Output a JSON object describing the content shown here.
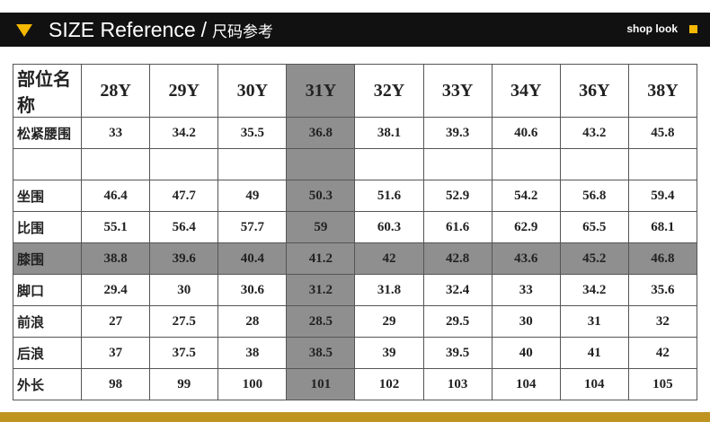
{
  "header": {
    "title": "SIZE Reference",
    "separator": "/",
    "subtitle": "尺码参考",
    "shop_link": "shop look"
  },
  "table": {
    "columns": [
      "部位名称",
      "28Y",
      "29Y",
      "30Y",
      "31Y",
      "32Y",
      "33Y",
      "34Y",
      "36Y",
      "38Y"
    ],
    "rows": [
      [
        "松紧腰围",
        "33",
        "34.2",
        "35.5",
        "36.8",
        "38.1",
        "39.3",
        "40.6",
        "43.2",
        "45.8"
      ],
      [
        "坐围",
        "46.4",
        "47.7",
        "49",
        "50.3",
        "51.6",
        "52.9",
        "54.2",
        "56.8",
        "59.4"
      ],
      [
        "比围",
        "55.1",
        "56.4",
        "57.7",
        "59",
        "60.3",
        "61.6",
        "62.9",
        "65.5",
        "68.1"
      ],
      [
        "膝围",
        "38.8",
        "39.6",
        "40.4",
        "41.2",
        "42",
        "42.8",
        "43.6",
        "45.2",
        "46.8"
      ],
      [
        "脚口",
        "29.4",
        "30",
        "30.6",
        "31.2",
        "31.8",
        "32.4",
        "33",
        "34.2",
        "35.6"
      ],
      [
        "前浪",
        "27",
        "27.5",
        "28",
        "28.5",
        "29",
        "29.5",
        "30",
        "31",
        "32"
      ],
      [
        "后浪",
        "37",
        "37.5",
        "38",
        "38.5",
        "39",
        "39.5",
        "40",
        "41",
        "42"
      ],
      [
        "外长",
        "98",
        "99",
        "100",
        "101",
        "102",
        "103",
        "104",
        "104",
        "105"
      ]
    ],
    "highlight": {
      "column": "31Y",
      "row": "膝围",
      "color": "#8f8f8f"
    }
  }
}
